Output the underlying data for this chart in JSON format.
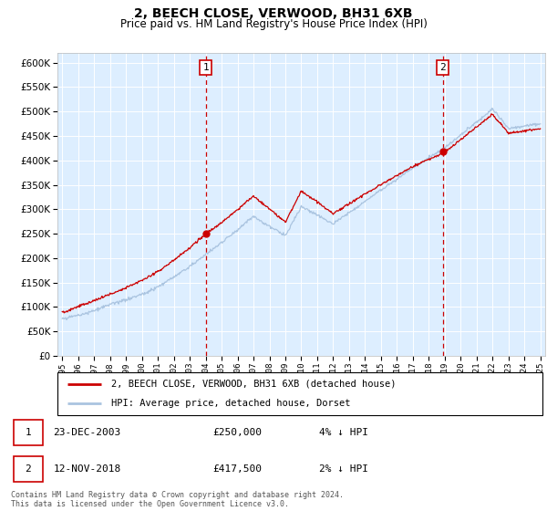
{
  "title_line1": "2, BEECH CLOSE, VERWOOD, BH31 6XB",
  "title_line2": "Price paid vs. HM Land Registry's House Price Index (HPI)",
  "ylim": [
    0,
    620000
  ],
  "yticks": [
    0,
    50000,
    100000,
    150000,
    200000,
    250000,
    300000,
    350000,
    400000,
    450000,
    500000,
    550000,
    600000
  ],
  "x_start_year": 1995,
  "x_end_year": 2025,
  "sale1_year": 2004.0,
  "sale1_price": 250000,
  "sale2_year": 2018.87,
  "sale2_price": 417500,
  "hpi_color": "#aac4e0",
  "price_color": "#cc0000",
  "bg_color": "#ddeeff",
  "grid_color": "#ffffff",
  "legend_label1": "2, BEECH CLOSE, VERWOOD, BH31 6XB (detached house)",
  "legend_label2": "HPI: Average price, detached house, Dorset",
  "annotation1_label": "1",
  "annotation1_date": "23-DEC-2003",
  "annotation1_price": "£250,000",
  "annotation1_hpi": "4% ↓ HPI",
  "annotation2_label": "2",
  "annotation2_date": "12-NOV-2018",
  "annotation2_price": "£417,500",
  "annotation2_hpi": "2% ↓ HPI",
  "footer": "Contains HM Land Registry data © Crown copyright and database right 2024.\nThis data is licensed under the Open Government Licence v3.0."
}
